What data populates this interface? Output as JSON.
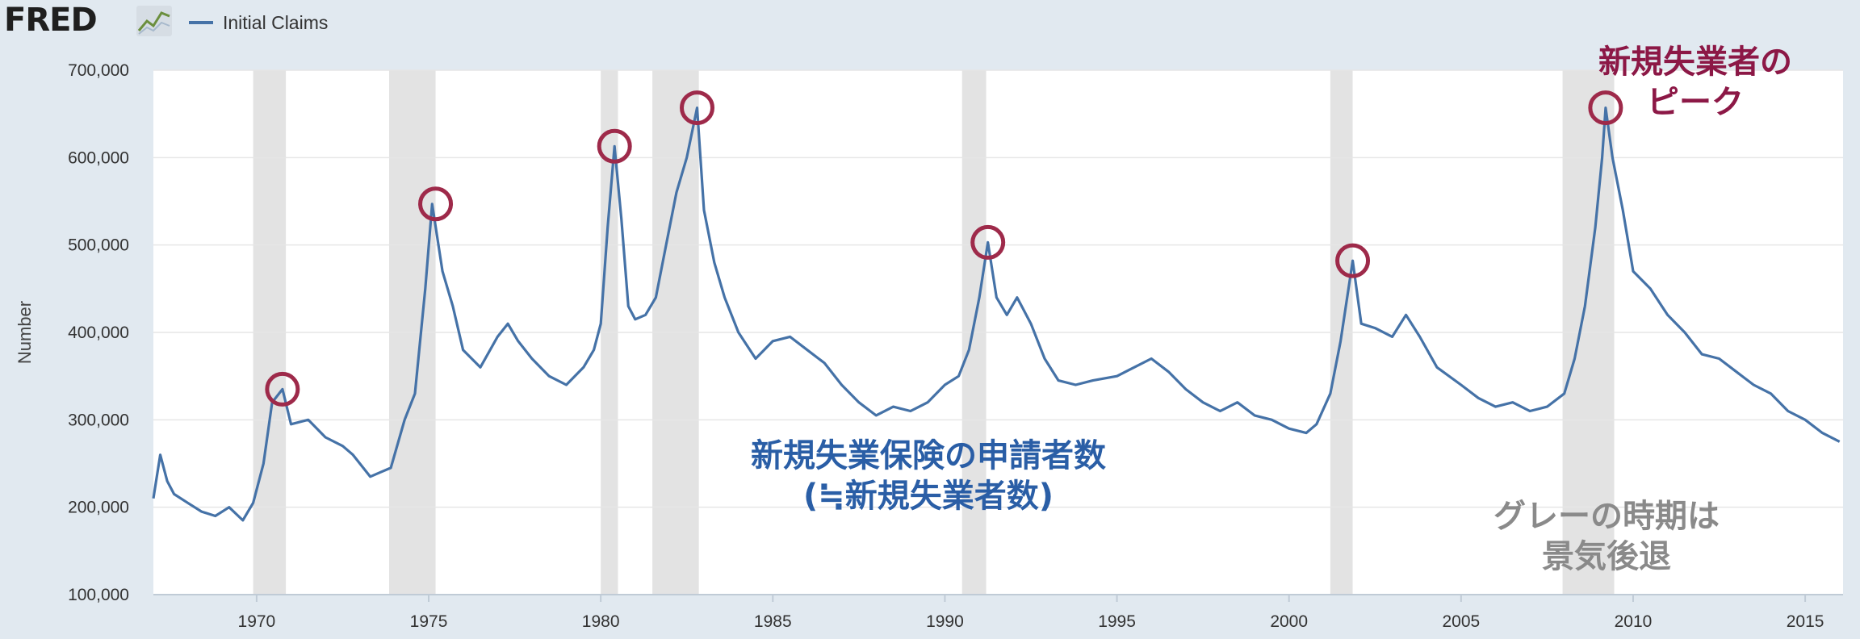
{
  "header": {
    "logo_text": "FRED",
    "logo_icon": "line-chart-icon",
    "legend_label": "Initial Claims",
    "legend_color": "#4572a7"
  },
  "annotations": {
    "series_note_line1": "新規失業保険の申請者数",
    "series_note_line2": "(≒新規失業者数)",
    "peak_note_line1": "新規失業者の",
    "peak_note_line2": "ピーク",
    "recession_note_line1": "グレーの時期は",
    "recession_note_line2": "景気後退"
  },
  "colors": {
    "line": "#4572a7",
    "recession": "#e3e3e3",
    "circle": "#9e2a4a",
    "background": "#e1e9f0",
    "plot": "#ffffff"
  },
  "chart_data": {
    "type": "line",
    "title": "",
    "xlabel": "",
    "ylabel": "Number",
    "ylim": [
      100000,
      700000
    ],
    "xlim": [
      1967.0,
      2016.1
    ],
    "y_ticks": [
      100000,
      200000,
      300000,
      400000,
      500000,
      600000,
      700000
    ],
    "y_tick_labels": [
      "100,000",
      "200,000",
      "300,000",
      "400,000",
      "500,000",
      "600,000",
      "700,000"
    ],
    "x_ticks": [
      1970,
      1975,
      1980,
      1985,
      1990,
      1995,
      2000,
      2005,
      2010,
      2015
    ],
    "x_tick_labels": [
      "1970",
      "1975",
      "1980",
      "1985",
      "1990",
      "1995",
      "2000",
      "2005",
      "2010",
      "2015"
    ],
    "grid": true,
    "legend_position": "top-left",
    "recessions": [
      [
        1969.9,
        1970.85
      ],
      [
        1973.85,
        1975.2
      ],
      [
        1980.0,
        1980.5
      ],
      [
        1981.5,
        1982.85
      ],
      [
        1990.5,
        1991.2
      ],
      [
        2001.2,
        2001.85
      ],
      [
        2007.95,
        2009.45
      ]
    ],
    "peak_markers": [
      {
        "x": 1970.75,
        "y": 335000
      },
      {
        "x": 1975.2,
        "y": 547000
      },
      {
        "x": 1980.4,
        "y": 613000
      },
      {
        "x": 1982.8,
        "y": 657000
      },
      {
        "x": 1991.25,
        "y": 503000
      },
      {
        "x": 2001.85,
        "y": 482000
      },
      {
        "x": 2009.2,
        "y": 657000
      }
    ],
    "series": [
      {
        "name": "Initial Claims",
        "x": [
          1967.0,
          1967.2,
          1967.4,
          1967.6,
          1968.0,
          1968.4,
          1968.8,
          1969.2,
          1969.6,
          1969.9,
          1970.2,
          1970.45,
          1970.75,
          1971.0,
          1971.5,
          1972.0,
          1972.5,
          1972.8,
          1973.3,
          1973.6,
          1973.9,
          1974.3,
          1974.6,
          1974.9,
          1975.1,
          1975.4,
          1975.7,
          1976.0,
          1976.5,
          1977.0,
          1977.3,
          1977.6,
          1978.0,
          1978.5,
          1979.0,
          1979.5,
          1979.8,
          1980.0,
          1980.2,
          1980.4,
          1980.6,
          1980.8,
          1981.0,
          1981.3,
          1981.6,
          1981.9,
          1982.2,
          1982.5,
          1982.8,
          1983.0,
          1983.3,
          1983.6,
          1984.0,
          1984.5,
          1985.0,
          1985.5,
          1986.0,
          1986.5,
          1987.0,
          1987.5,
          1988.0,
          1988.5,
          1989.0,
          1989.5,
          1990.0,
          1990.4,
          1990.7,
          1991.0,
          1991.25,
          1991.5,
          1991.8,
          1992.1,
          1992.5,
          1992.9,
          1993.3,
          1993.8,
          1994.3,
          1995.0,
          1995.5,
          1996.0,
          1996.5,
          1997.0,
          1997.5,
          1998.0,
          1998.5,
          1999.0,
          1999.5,
          2000.0,
          2000.5,
          2000.8,
          2001.2,
          2001.5,
          2001.85,
          2002.1,
          2002.5,
          2003.0,
          2003.4,
          2003.8,
          2004.3,
          2005.0,
          2005.5,
          2006.0,
          2006.5,
          2007.0,
          2007.5,
          2008.0,
          2008.3,
          2008.6,
          2008.9,
          2009.1,
          2009.2,
          2009.4,
          2009.7,
          2010.0,
          2010.5,
          2011.0,
          2011.5,
          2012.0,
          2012.5,
          2013.0,
          2013.5,
          2014.0,
          2014.5,
          2015.0,
          2015.5,
          2016.0
        ],
        "values": [
          210000,
          260000,
          230000,
          215000,
          205000,
          195000,
          190000,
          200000,
          185000,
          205000,
          250000,
          320000,
          335000,
          295000,
          300000,
          280000,
          270000,
          260000,
          235000,
          240000,
          245000,
          300000,
          330000,
          450000,
          547000,
          470000,
          430000,
          380000,
          360000,
          395000,
          410000,
          390000,
          370000,
          350000,
          340000,
          360000,
          380000,
          410000,
          520000,
          613000,
          530000,
          430000,
          415000,
          420000,
          440000,
          500000,
          560000,
          600000,
          657000,
          540000,
          480000,
          440000,
          400000,
          370000,
          390000,
          395000,
          380000,
          365000,
          340000,
          320000,
          305000,
          315000,
          310000,
          320000,
          340000,
          350000,
          380000,
          440000,
          503000,
          440000,
          420000,
          440000,
          410000,
          370000,
          345000,
          340000,
          345000,
          350000,
          360000,
          370000,
          355000,
          335000,
          320000,
          310000,
          320000,
          305000,
          300000,
          290000,
          285000,
          295000,
          330000,
          390000,
          482000,
          410000,
          405000,
          395000,
          420000,
          395000,
          360000,
          340000,
          325000,
          315000,
          320000,
          310000,
          315000,
          330000,
          370000,
          430000,
          520000,
          600000,
          657000,
          600000,
          540000,
          470000,
          450000,
          420000,
          400000,
          375000,
          370000,
          355000,
          340000,
          330000,
          310000,
          300000,
          285000,
          275000
        ]
      }
    ]
  }
}
